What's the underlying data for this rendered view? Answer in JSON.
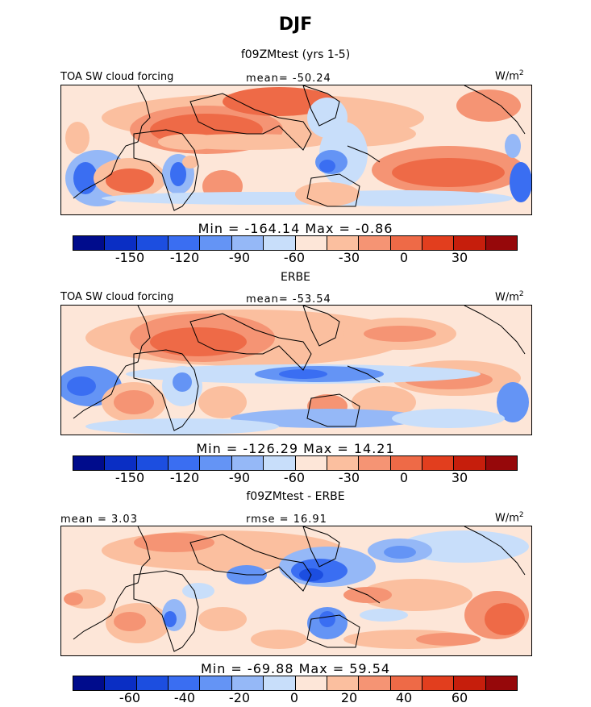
{
  "title": "DJF",
  "panels": [
    {
      "subtitle": "f09ZMtest (yrs 1-5)",
      "left_label": "TOA SW cloud forcing",
      "center_label": "mean= -50.24",
      "units": "W/m",
      "units_sup": "2",
      "minmax": "Min = -164.14  Max =  -0.86",
      "ticks": [
        "-150",
        "-120",
        "-90",
        "-60",
        "-30",
        "0",
        "30"
      ]
    },
    {
      "subtitle": "ERBE",
      "left_label": "TOA SW cloud forcing",
      "center_label": "mean= -53.54",
      "units": "W/m",
      "units_sup": "2",
      "minmax": "Min = -126.29  Max =  14.21",
      "ticks": [
        "-150",
        "-120",
        "-90",
        "-60",
        "-30",
        "0",
        "30"
      ]
    },
    {
      "subtitle": "f09ZMtest - ERBE",
      "left_label": "mean =   3.03",
      "center_label": "rmse =  16.91",
      "units": "W/m",
      "units_sup": "2",
      "minmax": "Min = -69.88  Max =  59.54",
      "ticks": [
        "-60",
        "-40",
        "-20",
        "0",
        "20",
        "40",
        "60"
      ]
    }
  ],
  "colorbar_colors": [
    "#000c8c",
    "#0a2ec4",
    "#1c4ee0",
    "#3a6ef2",
    "#6494f5",
    "#95b8f7",
    "#c8defa",
    "#fde6d8",
    "#fbbf9f",
    "#f59474",
    "#ee6a47",
    "#e23e1e",
    "#c61e0c",
    "#96080a"
  ]
}
